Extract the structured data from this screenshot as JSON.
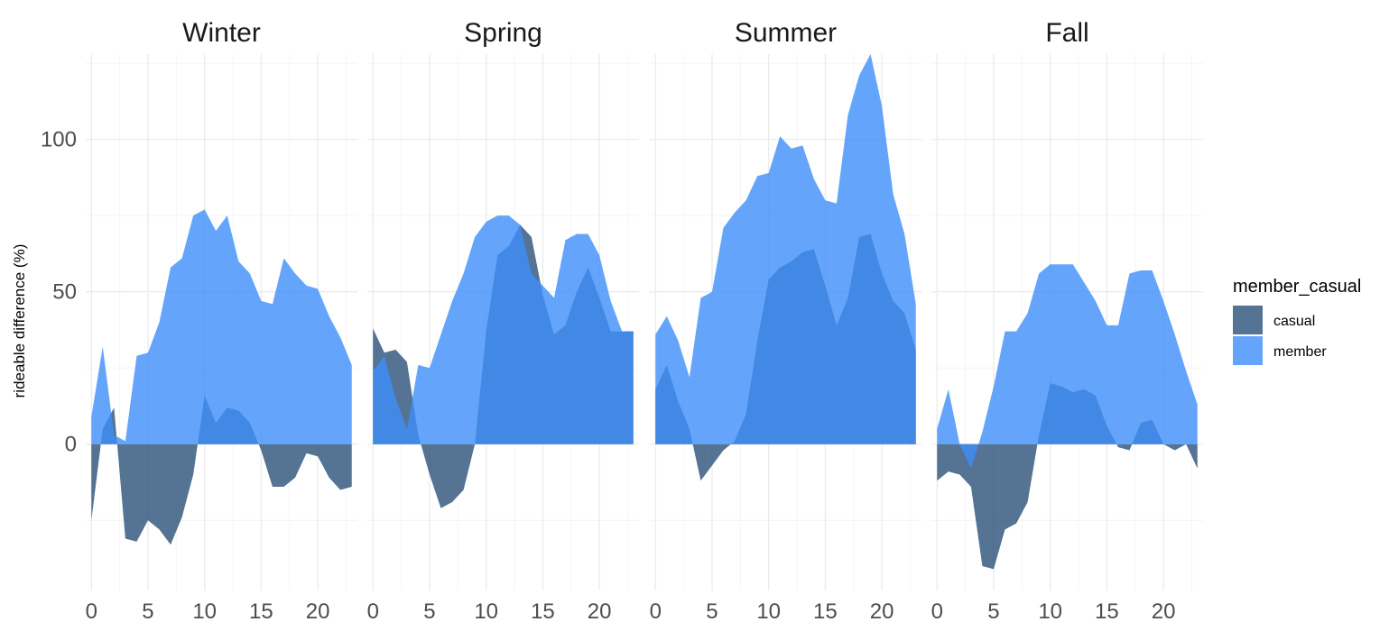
{
  "chart_data": {
    "type": "area",
    "ylabel": "rideable difference (%)",
    "xlabel": "",
    "xlim": [
      -0.5,
      23.5
    ],
    "ylim": [
      -48,
      128
    ],
    "x_ticks": [
      0,
      5,
      10,
      15,
      20
    ],
    "y_ticks": [
      0,
      50,
      100
    ],
    "grid": true,
    "legend": {
      "title": "member_casual",
      "placement": "right",
      "entries": [
        {
          "name": "casual",
          "color": "#2b5078"
        },
        {
          "name": "member",
          "color": "#3d8ffa"
        }
      ]
    },
    "x": [
      0,
      1,
      2,
      3,
      4,
      5,
      6,
      7,
      8,
      9,
      10,
      11,
      12,
      13,
      14,
      15,
      16,
      17,
      18,
      19,
      20,
      21,
      22,
      23
    ],
    "panels": [
      {
        "title": "Winter",
        "series": [
          {
            "name": "casual",
            "values": [
              -25,
              5,
              12,
              -31,
              -32,
              -25,
              -28,
              -33,
              -24,
              -10,
              16,
              7,
              12,
              11,
              7,
              -2,
              -14,
              -14,
              -11,
              -3,
              -4,
              -11,
              -15,
              -14
            ]
          },
          {
            "name": "member",
            "values": [
              9,
              32,
              3,
              1,
              29,
              30,
              40,
              58,
              61,
              75,
              77,
              70,
              75,
              60,
              56,
              47,
              46,
              61,
              56,
              52,
              51,
              42,
              35,
              26
            ]
          }
        ]
      },
      {
        "title": "Spring",
        "series": [
          {
            "name": "casual",
            "values": [
              38,
              30,
              31,
              27,
              3,
              -10,
              -21,
              -19,
              -15,
              0,
              37,
              62,
              65,
              72,
              68,
              49,
              36,
              39,
              50,
              58,
              48,
              37,
              37,
              37
            ]
          },
          {
            "name": "member",
            "values": [
              24,
              29,
              15,
              5,
              26,
              25,
              36,
              47,
              56,
              68,
              73,
              75,
              75,
              72,
              56,
              52,
              48,
              67,
              69,
              69,
              62,
              47,
              37,
              37
            ]
          }
        ]
      },
      {
        "title": "Summer",
        "series": [
          {
            "name": "casual",
            "values": [
              18,
              26,
              14,
              5,
              -12,
              -7,
              -2,
              1,
              10,
              34,
              54,
              58,
              60,
              63,
              64,
              52,
              39,
              48,
              68,
              69,
              56,
              47,
              43,
              31
            ]
          },
          {
            "name": "member",
            "values": [
              36,
              42,
              34,
              22,
              48,
              50,
              71,
              76,
              80,
              88,
              89,
              101,
              97,
              98,
              87,
              80,
              79,
              108,
              121,
              128,
              111,
              82,
              69,
              46
            ]
          }
        ]
      },
      {
        "title": "Fall",
        "series": [
          {
            "name": "casual",
            "values": [
              -12,
              -9,
              -10,
              -14,
              -40,
              -41,
              -28,
              -26,
              -19,
              3,
              20,
              19,
              17,
              18,
              16,
              6,
              -1,
              -2,
              7,
              8,
              0,
              -2,
              0,
              -8
            ]
          },
          {
            "name": "member",
            "values": [
              5,
              18,
              0,
              -8,
              4,
              19,
              37,
              37,
              43,
              56,
              59,
              59,
              59,
              53,
              47,
              39,
              39,
              56,
              57,
              57,
              47,
              36,
              24,
              13
            ]
          }
        ]
      }
    ]
  }
}
